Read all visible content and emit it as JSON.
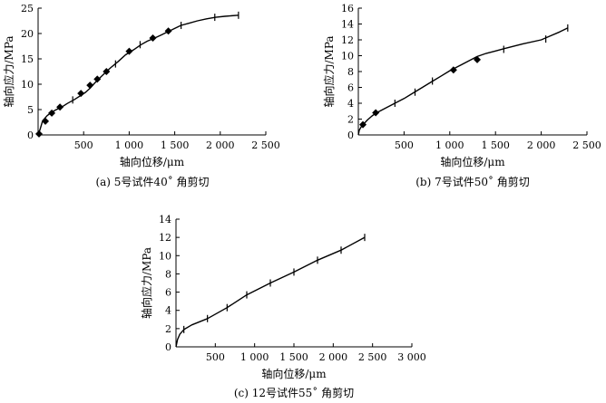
{
  "figure": {
    "background": "#ffffff",
    "line_color": "#000000"
  },
  "chart_data": [
    {
      "type": "line",
      "caption": "(a) 5号试件40˚ 角剪切",
      "xlabel": "轴向位移/μm",
      "ylabel": "轴向应力/MPa",
      "xlim": [
        0,
        2500
      ],
      "ylim": [
        0,
        25
      ],
      "xticks": [
        500,
        1000,
        1500,
        2000,
        2500
      ],
      "xtick_labels": [
        "500",
        "1 000",
        "1 500",
        "2 000",
        "2 500"
      ],
      "yticks": [
        0,
        5,
        10,
        15,
        20,
        25
      ],
      "ytick_labels": [
        "0",
        "5",
        "10",
        "15",
        "20",
        "25"
      ],
      "grid": false,
      "series": [
        {
          "x": [
            0,
            20,
            50,
            100,
            150,
            200,
            260,
            320,
            400,
            470,
            520,
            570,
            620,
            680,
            750,
            800,
            880,
            960,
            1050,
            1130,
            1200,
            1280,
            1350,
            1420,
            1500,
            1570,
            1650,
            1750,
            1850,
            1950,
            2050,
            2200
          ],
          "y": [
            0,
            1.0,
            2.8,
            3.8,
            4.5,
            5.0,
            5.5,
            6.2,
            7.0,
            7.8,
            8.4,
            9.2,
            10.2,
            11.3,
            12.5,
            13.3,
            14.5,
            15.8,
            16.8,
            17.8,
            18.5,
            19.1,
            19.7,
            20.3,
            21.0,
            21.6,
            22.0,
            22.5,
            22.9,
            23.2,
            23.4,
            23.6
          ],
          "markers_diamond_x": [
            10,
            80,
            150,
            240,
            470,
            570,
            650,
            750,
            1000,
            1260,
            1430
          ],
          "markers_diamond_y": [
            0.2,
            2.7,
            4.3,
            5.5,
            8.2,
            9.8,
            11.0,
            12.5,
            16.5,
            19.1,
            20.5
          ],
          "markers_tick_x": [
            380,
            850,
            1120,
            1570,
            1940,
            2200
          ],
          "markers_tick_y": [
            6.9,
            14.0,
            17.8,
            21.6,
            23.2,
            23.6
          ]
        }
      ]
    },
    {
      "type": "line",
      "caption": "(b) 7号试件50˚ 角剪切",
      "xlabel": "轴向位移/μm",
      "ylabel": "轴向应力/MPa",
      "xlim": [
        0,
        2500
      ],
      "ylim": [
        0,
        16
      ],
      "xticks": [
        500,
        1000,
        1500,
        2000,
        2500
      ],
      "xtick_labels": [
        "500",
        "1 000",
        "1 500",
        "2 000",
        "2 500"
      ],
      "yticks": [
        0,
        2,
        4,
        6,
        8,
        10,
        12,
        14,
        16
      ],
      "ytick_labels": [
        "0",
        "2",
        "4",
        "6",
        "8",
        "10",
        "12",
        "14",
        "16"
      ],
      "grid": false,
      "series": [
        {
          "x": [
            0,
            10,
            30,
            60,
            100,
            150,
            200,
            300,
            400,
            500,
            600,
            700,
            800,
            900,
            1000,
            1100,
            1200,
            1300,
            1400,
            1500,
            1600,
            1800,
            2000,
            2100,
            2200,
            2290
          ],
          "y": [
            0,
            0.6,
            1.0,
            1.4,
            1.9,
            2.4,
            2.8,
            3.4,
            4.0,
            4.6,
            5.3,
            6.0,
            6.7,
            7.4,
            8.1,
            8.7,
            9.3,
            9.9,
            10.3,
            10.6,
            10.9,
            11.5,
            12.0,
            12.5,
            13.0,
            13.5
          ],
          "markers_diamond_x": [
            50,
            190,
            1040,
            1300
          ],
          "markers_diamond_y": [
            1.3,
            2.8,
            8.2,
            9.5
          ],
          "markers_tick_x": [
            400,
            620,
            810,
            1590,
            2050,
            2290
          ],
          "markers_tick_y": [
            4.0,
            5.4,
            6.8,
            10.8,
            12.1,
            13.5
          ]
        }
      ]
    },
    {
      "type": "line",
      "caption": "(c) 12号试件55˚ 角剪切",
      "xlabel": "轴向位移/μm",
      "ylabel": "轴向应力/MPa",
      "xlim": [
        0,
        3000
      ],
      "ylim": [
        0,
        14
      ],
      "xticks": [
        500,
        1000,
        1500,
        2000,
        2500,
        3000
      ],
      "xtick_labels": [
        "500",
        "1 000",
        "1 500",
        "2 000",
        "2 500",
        "3 000"
      ],
      "yticks": [
        0,
        2,
        4,
        6,
        8,
        10,
        12,
        14
      ],
      "ytick_labels": [
        "0",
        "2",
        "4",
        "6",
        "8",
        "10",
        "12",
        "14"
      ],
      "grid": false,
      "series": [
        {
          "x": [
            0,
            20,
            50,
            100,
            200,
            400,
            650,
            900,
            1200,
            1500,
            1800,
            2100,
            2400
          ],
          "y": [
            0,
            0.8,
            1.4,
            1.9,
            2.4,
            3.1,
            4.3,
            5.7,
            7.0,
            8.2,
            9.5,
            10.6,
            12.0
          ],
          "markers_diamond_x": [],
          "markers_diamond_y": [],
          "markers_tick_x": [
            100,
            400,
            650,
            900,
            1200,
            1500,
            1800,
            2100,
            2400
          ],
          "markers_tick_y": [
            1.9,
            3.1,
            4.3,
            5.7,
            7.0,
            8.2,
            9.5,
            10.6,
            12.0
          ]
        }
      ]
    }
  ]
}
